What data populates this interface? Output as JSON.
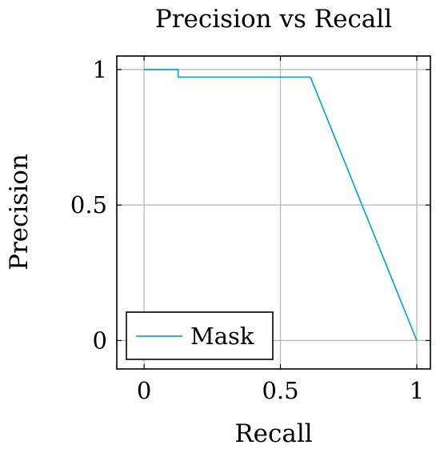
{
  "chart_data": {
    "type": "line",
    "title": "Precision vs Recall",
    "xlabel": "Recall",
    "ylabel": "Precision",
    "xlim": [
      -0.1,
      1.05
    ],
    "ylim": [
      -0.105,
      1.05
    ],
    "xticks": [
      0,
      0.5,
      1
    ],
    "xtick_labels": [
      "0",
      "0.5",
      "1"
    ],
    "yticks": [
      0,
      0.5,
      1
    ],
    "ytick_labels": [
      "0",
      "0.5",
      "1"
    ],
    "grid": true,
    "legend_position": "bottom-left",
    "series": [
      {
        "name": "Mask",
        "color": "#1aa6d6",
        "x": [
          0,
          0.125,
          0.125,
          0.61,
          1.0
        ],
        "y": [
          1.0,
          1.0,
          0.972,
          0.972,
          0.0
        ]
      }
    ]
  },
  "colors": {
    "grid": "#b8b8b8",
    "axis": "#000000"
  }
}
